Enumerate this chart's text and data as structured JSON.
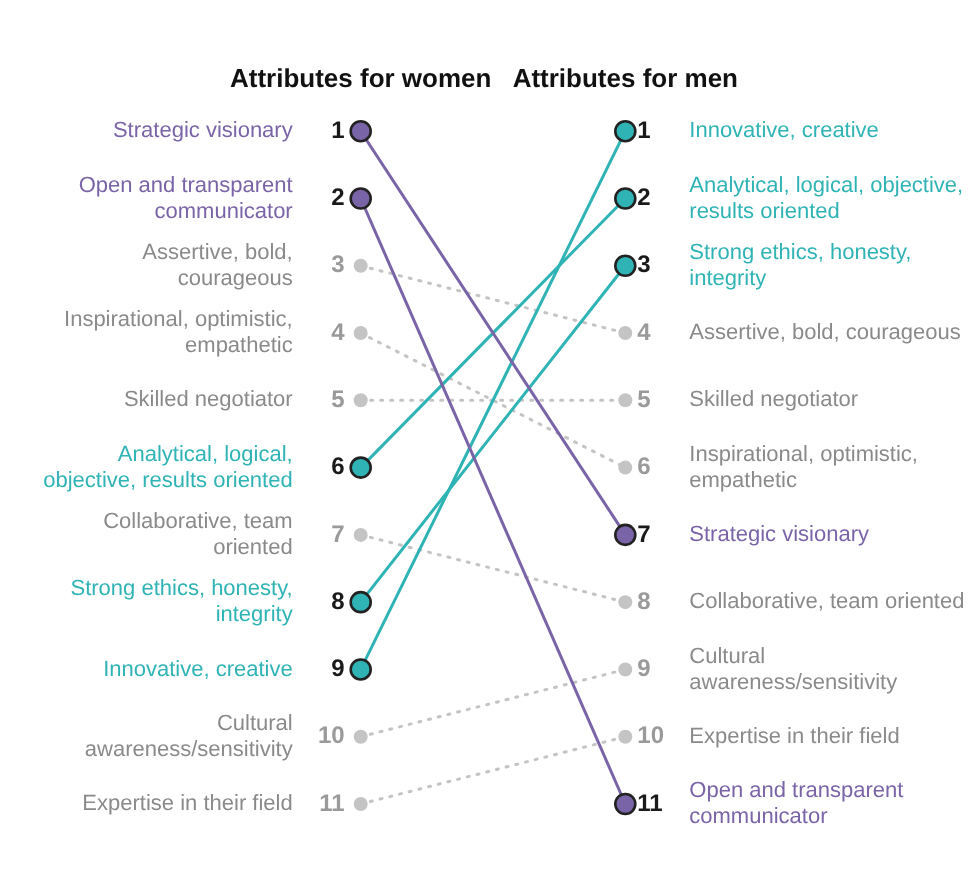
{
  "chart_data": {
    "type": "line",
    "categories": [
      "Attributes for women",
      "Attributes for men"
    ],
    "ylim": [
      11,
      1
    ],
    "yticks": [
      1,
      2,
      3,
      4,
      5,
      6,
      7,
      8,
      9,
      10,
      11
    ],
    "y2lim": [
      11,
      1
    ],
    "y2ticks": [
      1,
      2,
      3,
      4,
      5,
      6,
      7,
      8,
      9,
      10,
      11
    ],
    "marker": "circle",
    "legend": false,
    "grid": false,
    "series": [
      {
        "name": "Strategic visionary",
        "color": "#7a64a8",
        "values": [
          1,
          7
        ],
        "line_style": "solid"
      },
      {
        "name": "Open and transparent communicator",
        "color": "#7a64a8",
        "values": [
          2,
          11
        ],
        "line_style": "solid"
      },
      {
        "name": "Assertive, bold, courageous",
        "color": "#c4c4c4",
        "values": [
          3,
          4
        ],
        "line_style": "dotted"
      },
      {
        "name": "Inspirational, optimistic, empathetic",
        "color": "#c4c4c4",
        "values": [
          4,
          6
        ],
        "line_style": "dotted"
      },
      {
        "name": "Skilled negotiator",
        "color": "#c4c4c4",
        "values": [
          5,
          5
        ],
        "line_style": "dotted"
      },
      {
        "name": "Analytical, logical, objective, results oriented",
        "color": "#2fb3b5",
        "values": [
          6,
          2
        ],
        "line_style": "solid"
      },
      {
        "name": "Collaborative, team oriented",
        "color": "#c4c4c4",
        "values": [
          7,
          8
        ],
        "line_style": "dotted"
      },
      {
        "name": "Strong ethics, honesty, integrity",
        "color": "#2fb3b5",
        "values": [
          8,
          3
        ],
        "line_style": "solid"
      },
      {
        "name": "Innovative, creative",
        "color": "#2fb3b5",
        "values": [
          9,
          1
        ],
        "line_style": "solid"
      },
      {
        "name": "Cultural awareness/sensitivity",
        "color": "#c4c4c4",
        "values": [
          10,
          9
        ],
        "line_style": "dotted"
      },
      {
        "name": "Expertise in their field",
        "color": "#c4c4c4",
        "values": [
          11,
          10
        ],
        "line_style": "dotted"
      }
    ]
  }
}
